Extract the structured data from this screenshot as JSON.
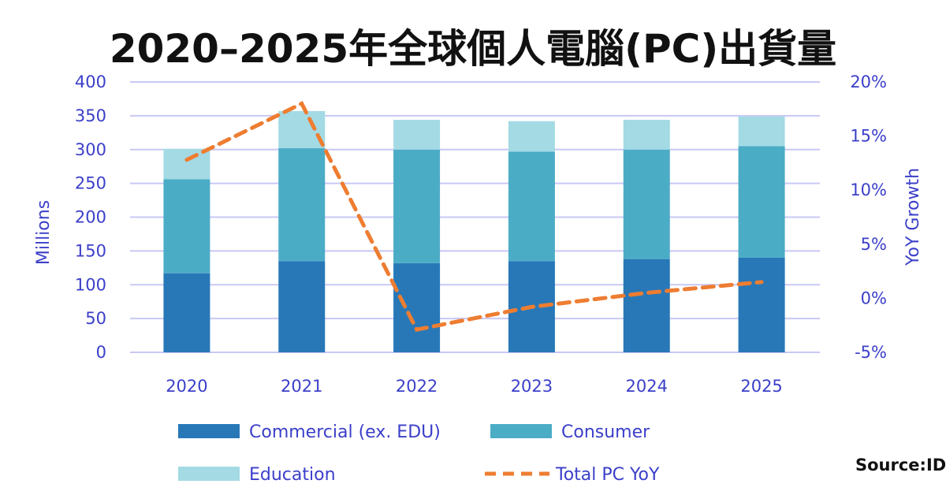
{
  "title": "2020–2025年全球個人電腦(PC)出貨量",
  "source": "Source:ID",
  "colors": {
    "commercial": "#2878b8",
    "consumer": "#4bacc6",
    "education": "#a3dae4",
    "yoy": "#ee7d31",
    "axis": "#3b3fc9",
    "grid": "#c8c8f5"
  },
  "chart_data": {
    "type": "bar",
    "title": "2020–2025年全球個人電腦(PC)出貨量",
    "categories": [
      "2020",
      "2021",
      "2022",
      "2023",
      "2024",
      "2025"
    ],
    "series": [
      {
        "name": "Commercial (ex. EDU)",
        "values": [
          117,
          135,
          132,
          135,
          138,
          140
        ]
      },
      {
        "name": "Consumer",
        "values": [
          139,
          167,
          168,
          162,
          162,
          165
        ]
      },
      {
        "name": "Education",
        "values": [
          45,
          55,
          44,
          45,
          44,
          44
        ]
      },
      {
        "name": "Total PC YoY",
        "type": "line",
        "axis": "right",
        "values": [
          12.8,
          18.0,
          -2.9,
          -0.8,
          0.5,
          1.5
        ]
      }
    ],
    "ylabel": "Millions",
    "y2label": "YoY Growth",
    "ylim": [
      0,
      400
    ],
    "y2lim": [
      -5,
      20
    ],
    "yticks": [
      "0",
      "50",
      "100",
      "150",
      "200",
      "250",
      "300",
      "350",
      "400"
    ],
    "y2ticks": [
      "-5%",
      "0%",
      "5%",
      "10%",
      "15%",
      "20%"
    ],
    "grid": true,
    "legend_position": "bottom"
  }
}
